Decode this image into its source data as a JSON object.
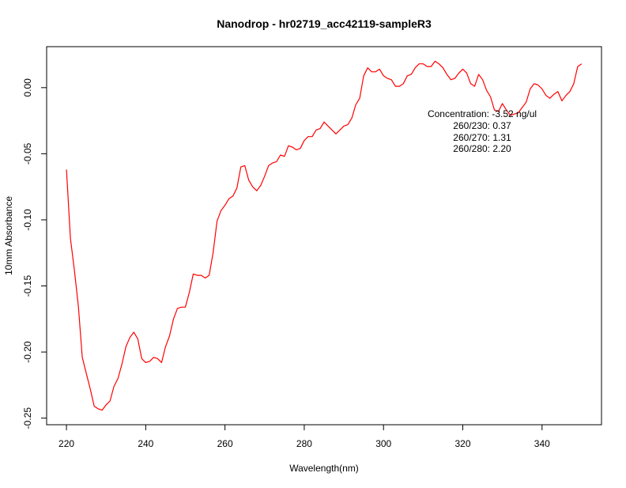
{
  "chart_data": {
    "type": "line",
    "title": "Nanodrop - hr02719_acc42119-sampleR3",
    "xlabel": "Wavelength(nm)",
    "ylabel": "10mm Absorbance",
    "xlim": [
      215,
      355
    ],
    "ylim": [
      -0.255,
      0.031
    ],
    "xticks": [
      220,
      240,
      260,
      280,
      300,
      320,
      340
    ],
    "yticks": [
      -0.25,
      -0.2,
      -0.15,
      -0.1,
      -0.05,
      0.0
    ],
    "ytick_labels": [
      "-0.25",
      "-0.20",
      "-0.15",
      "-0.10",
      "-0.05",
      "0.00"
    ],
    "grid": false,
    "line_color": "#ff0000",
    "annotations": [
      "Concentration: -3.52 ng/ul",
      "260/230: 0.37",
      "260/270: 1.31",
      "260/280: 2.20"
    ],
    "series": [
      {
        "x": [
          220,
          221,
          222,
          223,
          224,
          225,
          226,
          227,
          228,
          229,
          230,
          231,
          232,
          233,
          234,
          235,
          236,
          237,
          238,
          239,
          240,
          241,
          242,
          243,
          244,
          245,
          246,
          247,
          248,
          249,
          250,
          251,
          252,
          253,
          254,
          255,
          256,
          257,
          258,
          259,
          260,
          261,
          262,
          263,
          264,
          265,
          266,
          267,
          268,
          269,
          270,
          271,
          272,
          273,
          274,
          275,
          276,
          277,
          278,
          279,
          280,
          281,
          282,
          283,
          284,
          285,
          286,
          287,
          288,
          289,
          290,
          291,
          292,
          293,
          294,
          295,
          296,
          297,
          298,
          299,
          300,
          301,
          302,
          303,
          304,
          305,
          306,
          307,
          308,
          309,
          310,
          311,
          312,
          313,
          314,
          315,
          316,
          317,
          318,
          319,
          320,
          321,
          322,
          323,
          324,
          325,
          326,
          327,
          328,
          329,
          330,
          331,
          332,
          333,
          334,
          335,
          336,
          337,
          338,
          339,
          340,
          341,
          342,
          343,
          344,
          345,
          346,
          347,
          348,
          349,
          350
        ],
        "y": [
          -0.062,
          -0.114,
          -0.138,
          -0.165,
          -0.204,
          -0.216,
          -0.228,
          -0.241,
          -0.243,
          -0.244,
          -0.24,
          -0.237,
          -0.226,
          -0.22,
          -0.209,
          -0.196,
          -0.189,
          -0.185,
          -0.19,
          -0.205,
          -0.208,
          -0.207,
          -0.204,
          -0.205,
          -0.208,
          -0.196,
          -0.188,
          -0.175,
          -0.167,
          -0.166,
          -0.166,
          -0.155,
          -0.141,
          -0.142,
          -0.142,
          -0.144,
          -0.142,
          -0.125,
          -0.101,
          -0.093,
          -0.089,
          -0.084,
          -0.082,
          -0.076,
          -0.06,
          -0.059,
          -0.07,
          -0.075,
          -0.078,
          -0.074,
          -0.067,
          -0.059,
          -0.057,
          -0.056,
          -0.051,
          -0.052,
          -0.044,
          -0.045,
          -0.047,
          -0.046,
          -0.04,
          -0.037,
          -0.037,
          -0.032,
          -0.031,
          -0.026,
          -0.029,
          -0.032,
          -0.035,
          -0.032,
          -0.029,
          -0.028,
          -0.023,
          -0.013,
          -0.008,
          0.009,
          0.015,
          0.012,
          0.012,
          0.014,
          0.009,
          0.007,
          0.006,
          0.001,
          0.001,
          0.003,
          0.009,
          0.01,
          0.015,
          0.018,
          0.018,
          0.016,
          0.016,
          0.02,
          0.018,
          0.015,
          0.01,
          0.006,
          0.007,
          0.011,
          0.014,
          0.011,
          0.003,
          0.001,
          0.01,
          0.006,
          -0.002,
          -0.007,
          -0.017,
          -0.018,
          -0.012,
          -0.017,
          -0.021,
          -0.02,
          -0.019,
          -0.015,
          -0.011,
          -0.001,
          0.003,
          0.002,
          -0.001,
          -0.006,
          -0.008,
          -0.005,
          -0.003,
          -0.01,
          -0.006,
          -0.003,
          0.003,
          0.016,
          0.018
        ]
      }
    ]
  }
}
